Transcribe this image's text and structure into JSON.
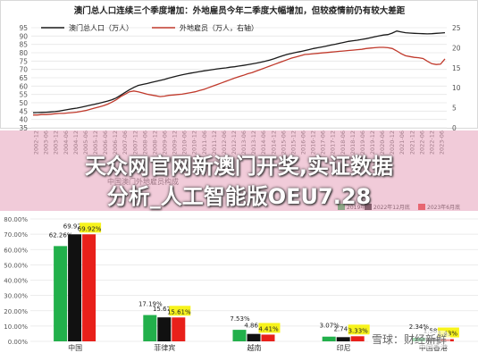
{
  "chart_data": [
    {
      "type": "line",
      "title": "澳门总人口连续三个季度增加：外地雇员今年二季度大幅增加，但较疫情前仍有较大差距",
      "series": [
        {
          "name": "澳门总人口（万人）",
          "axis": "left",
          "color": "#1a1a1a",
          "values": [
            44.0,
            44.1,
            44.2,
            44.3,
            44.5,
            44.7,
            45.0,
            45.5,
            46.0,
            46.4,
            46.8,
            47.3,
            47.9,
            48.5,
            49.1,
            49.7,
            50.3,
            51.0,
            51.8,
            52.9,
            54.5,
            56.2,
            57.8,
            59.2,
            60.4,
            61.0,
            61.5,
            62.2,
            62.8,
            63.4,
            64.0,
            64.8,
            65.5,
            66.1,
            66.7,
            67.3,
            67.8,
            68.2,
            68.7,
            69.1,
            69.5,
            69.9,
            70.3,
            70.6,
            70.9,
            71.3,
            71.6,
            72.0,
            72.4,
            72.8,
            73.3,
            73.8,
            74.3,
            74.9,
            75.6,
            76.4,
            77.3,
            78.2,
            79.0,
            79.6,
            80.2,
            80.7,
            81.3,
            81.9,
            82.5,
            83.0,
            83.5,
            84.0,
            84.6,
            85.1,
            85.7,
            86.2,
            86.8,
            87.2,
            87.5,
            88.0,
            88.4,
            89.0,
            89.6,
            90.1,
            90.6,
            90.9,
            91.8,
            93.0,
            92.5,
            92.0,
            91.8,
            91.6,
            91.5,
            91.4,
            91.3,
            91.4,
            91.6,
            91.8,
            92.0
          ]
        },
        {
          "name": "外地雇员（万人，右轴）",
          "axis": "right",
          "color": "#c0392b",
          "values": [
            3.2,
            3.2,
            3.3,
            3.3,
            3.4,
            3.5,
            3.6,
            3.6,
            3.7,
            3.8,
            3.9,
            4.1,
            4.3,
            4.6,
            4.9,
            5.2,
            5.5,
            5.9,
            6.4,
            7.0,
            7.8,
            8.4,
            9.0,
            9.2,
            9.0,
            8.7,
            8.4,
            8.2,
            8.0,
            7.8,
            7.9,
            8.1,
            8.2,
            8.3,
            8.4,
            8.6,
            8.8,
            9.0,
            9.3,
            9.6,
            10.0,
            10.4,
            10.8,
            11.2,
            11.6,
            12.0,
            12.4,
            12.8,
            13.1,
            13.5,
            13.8,
            14.2,
            14.6,
            15.0,
            15.4,
            15.8,
            16.2,
            16.6,
            17.0,
            17.4,
            17.7,
            18.0,
            18.3,
            18.4,
            18.5,
            18.6,
            18.7,
            18.8,
            18.9,
            19.0,
            19.1,
            19.2,
            19.3,
            19.4,
            19.5,
            19.6,
            19.8,
            19.9,
            20.0,
            20.1,
            20.1,
            20.0,
            19.8,
            19.2,
            18.5,
            18.0,
            17.8,
            17.6,
            17.5,
            17.3,
            16.6,
            16.0,
            15.8,
            15.9,
            17.2
          ]
        }
      ],
      "ylim_left": [
        35,
        95
      ],
      "yticks_left": [
        "35",
        "40",
        "45",
        "50",
        "55",
        "60",
        "65",
        "70",
        "75",
        "80",
        "85",
        "90",
        "95"
      ],
      "ylim_right": [
        0,
        25
      ],
      "yticks_right": [
        "0",
        "5",
        "10",
        "15",
        "20",
        "25"
      ],
      "xticks": [
        "2002-12",
        "2003-06",
        "2003-12",
        "2004-06",
        "2004-12",
        "2005-06",
        "2005-12",
        "2006-06",
        "2006-12",
        "2007-06",
        "2007-12",
        "2008-06",
        "2008-12",
        "2009-06",
        "2009-12",
        "2010-06",
        "2010-12",
        "2011-06",
        "2011-12",
        "2012-06",
        "2012-12",
        "2013-06",
        "2013-12",
        "2014-06",
        "2014-12",
        "2015-06",
        "2015-12",
        "2016-06",
        "2016-12",
        "2017-06",
        "2017-12",
        "2018-06",
        "2018-12",
        "2019-06",
        "2019-12",
        "2020-06",
        "2020-12",
        "2021-06",
        "2021-12",
        "2022-06",
        "2022-12",
        "2023-06"
      ],
      "grid": true,
      "legend_position": "top-left"
    },
    {
      "type": "bar",
      "title": "中国澳门外地雇员构成",
      "categories": [
        "中国",
        "菲律宾",
        "越南",
        "印尼",
        "中国香港"
      ],
      "series": [
        {
          "name": "2019年底",
          "color": "#22b04b",
          "values": [
            62.26,
            17.19,
            7.53,
            3.07,
            2.34
          ]
        },
        {
          "name": "2022年12月底",
          "color": "#111111",
          "values": [
            69.92,
            15.67,
            4.86,
            2.74,
            1.58
          ]
        },
        {
          "name": "2023年6月底",
          "color": "#e8201a",
          "values": [
            69.92,
            15.61,
            4.41,
            3.33,
            1.43
          ]
        }
      ],
      "labels": [
        [
          "62.26%",
          "17.19%",
          "7.53%",
          "3.07%",
          "2.34%"
        ],
        [
          "69.92%",
          "15.67%",
          "4.86%",
          "2.74%",
          "1.58%"
        ],
        [
          "69.92%",
          "15.61%",
          "4.41%",
          "3.33%",
          "1.43%"
        ]
      ],
      "ylim": [
        0,
        80
      ],
      "yticks": [
        "0.00%",
        "10.00%",
        "20.00%",
        "30.00%",
        "40.00%",
        "50.00%",
        "60.00%",
        "70.00%",
        "80.00%"
      ],
      "grid": true,
      "legend_position": "top-right"
    }
  ],
  "overlay": {
    "line1": "天众网官网新澳门开奖,实证数据",
    "line2": "分析_人工智能版OEU7.28",
    "watermark": "雪球：财经新鲜"
  }
}
